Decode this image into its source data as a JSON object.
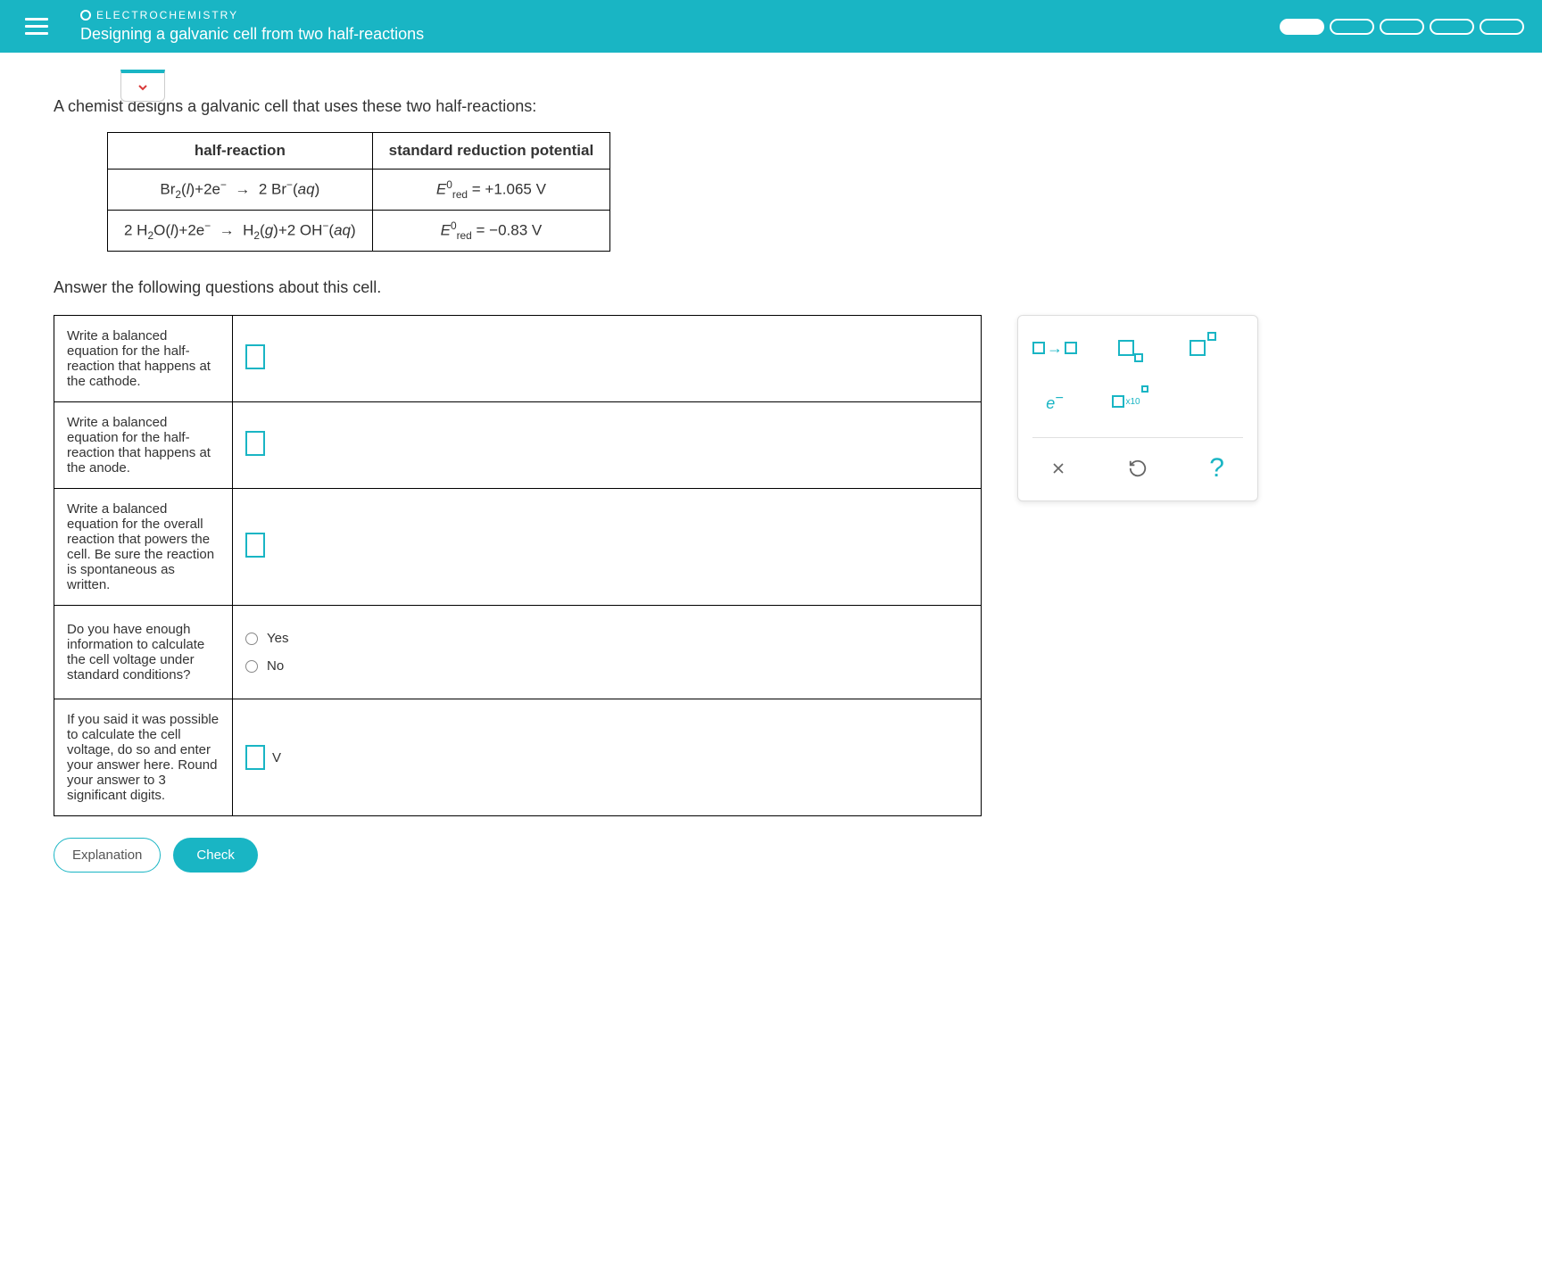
{
  "header": {
    "category": "ELECTROCHEMISTRY",
    "title": "Designing a galvanic cell from two half-reactions"
  },
  "intro": "A chemist designs a galvanic cell that uses these two half-reactions:",
  "data_table": {
    "headers": [
      "half-reaction",
      "standard reduction potential"
    ],
    "rows": [
      {
        "reaction_html": "Br<sub>2</sub>(<i>l</i>)+2e<sup>−</sup> &nbsp;→&nbsp; 2 Br<sup>−</sup>(<i>aq</i>)",
        "potential_html": "<i>E</i><sup>0</sup><sub>red</sub> = +1.065 V"
      },
      {
        "reaction_html": "2 H<sub>2</sub>O(<i>l</i>)+2e<sup>−</sup> &nbsp;→&nbsp; H<sub>2</sub>(<i>g</i>)+2 OH<sup>−</sup>(<i>aq</i>)",
        "potential_html": "<i>E</i><sup>0</sup><sub>red</sub> = −0.83 V"
      }
    ]
  },
  "subtext": "Answer the following questions about this cell.",
  "questions": {
    "q1": "Write a balanced equation for the half-reaction that happens at the cathode.",
    "q2": "Write a balanced equation for the half-reaction that happens at the anode.",
    "q3": "Write a balanced equation for the overall reaction that powers the cell. Be sure the reaction is spontaneous as written.",
    "q4": "Do you have enough information to calculate the cell voltage under standard conditions?",
    "q4_yes": "Yes",
    "q4_no": "No",
    "q5_html": "If you said it was possible to calculate the cell voltage, do so and enter your answer here. Round your answer to 3 significant digits.",
    "q5_unit": "V"
  },
  "toolbox": {
    "arrow": "→",
    "electron": "e",
    "x10_label": "x10"
  },
  "buttons": {
    "explanation": "Explanation",
    "check": "Check"
  },
  "colors": {
    "primary": "#19b5c4",
    "border": "#000000",
    "text": "#333333"
  }
}
